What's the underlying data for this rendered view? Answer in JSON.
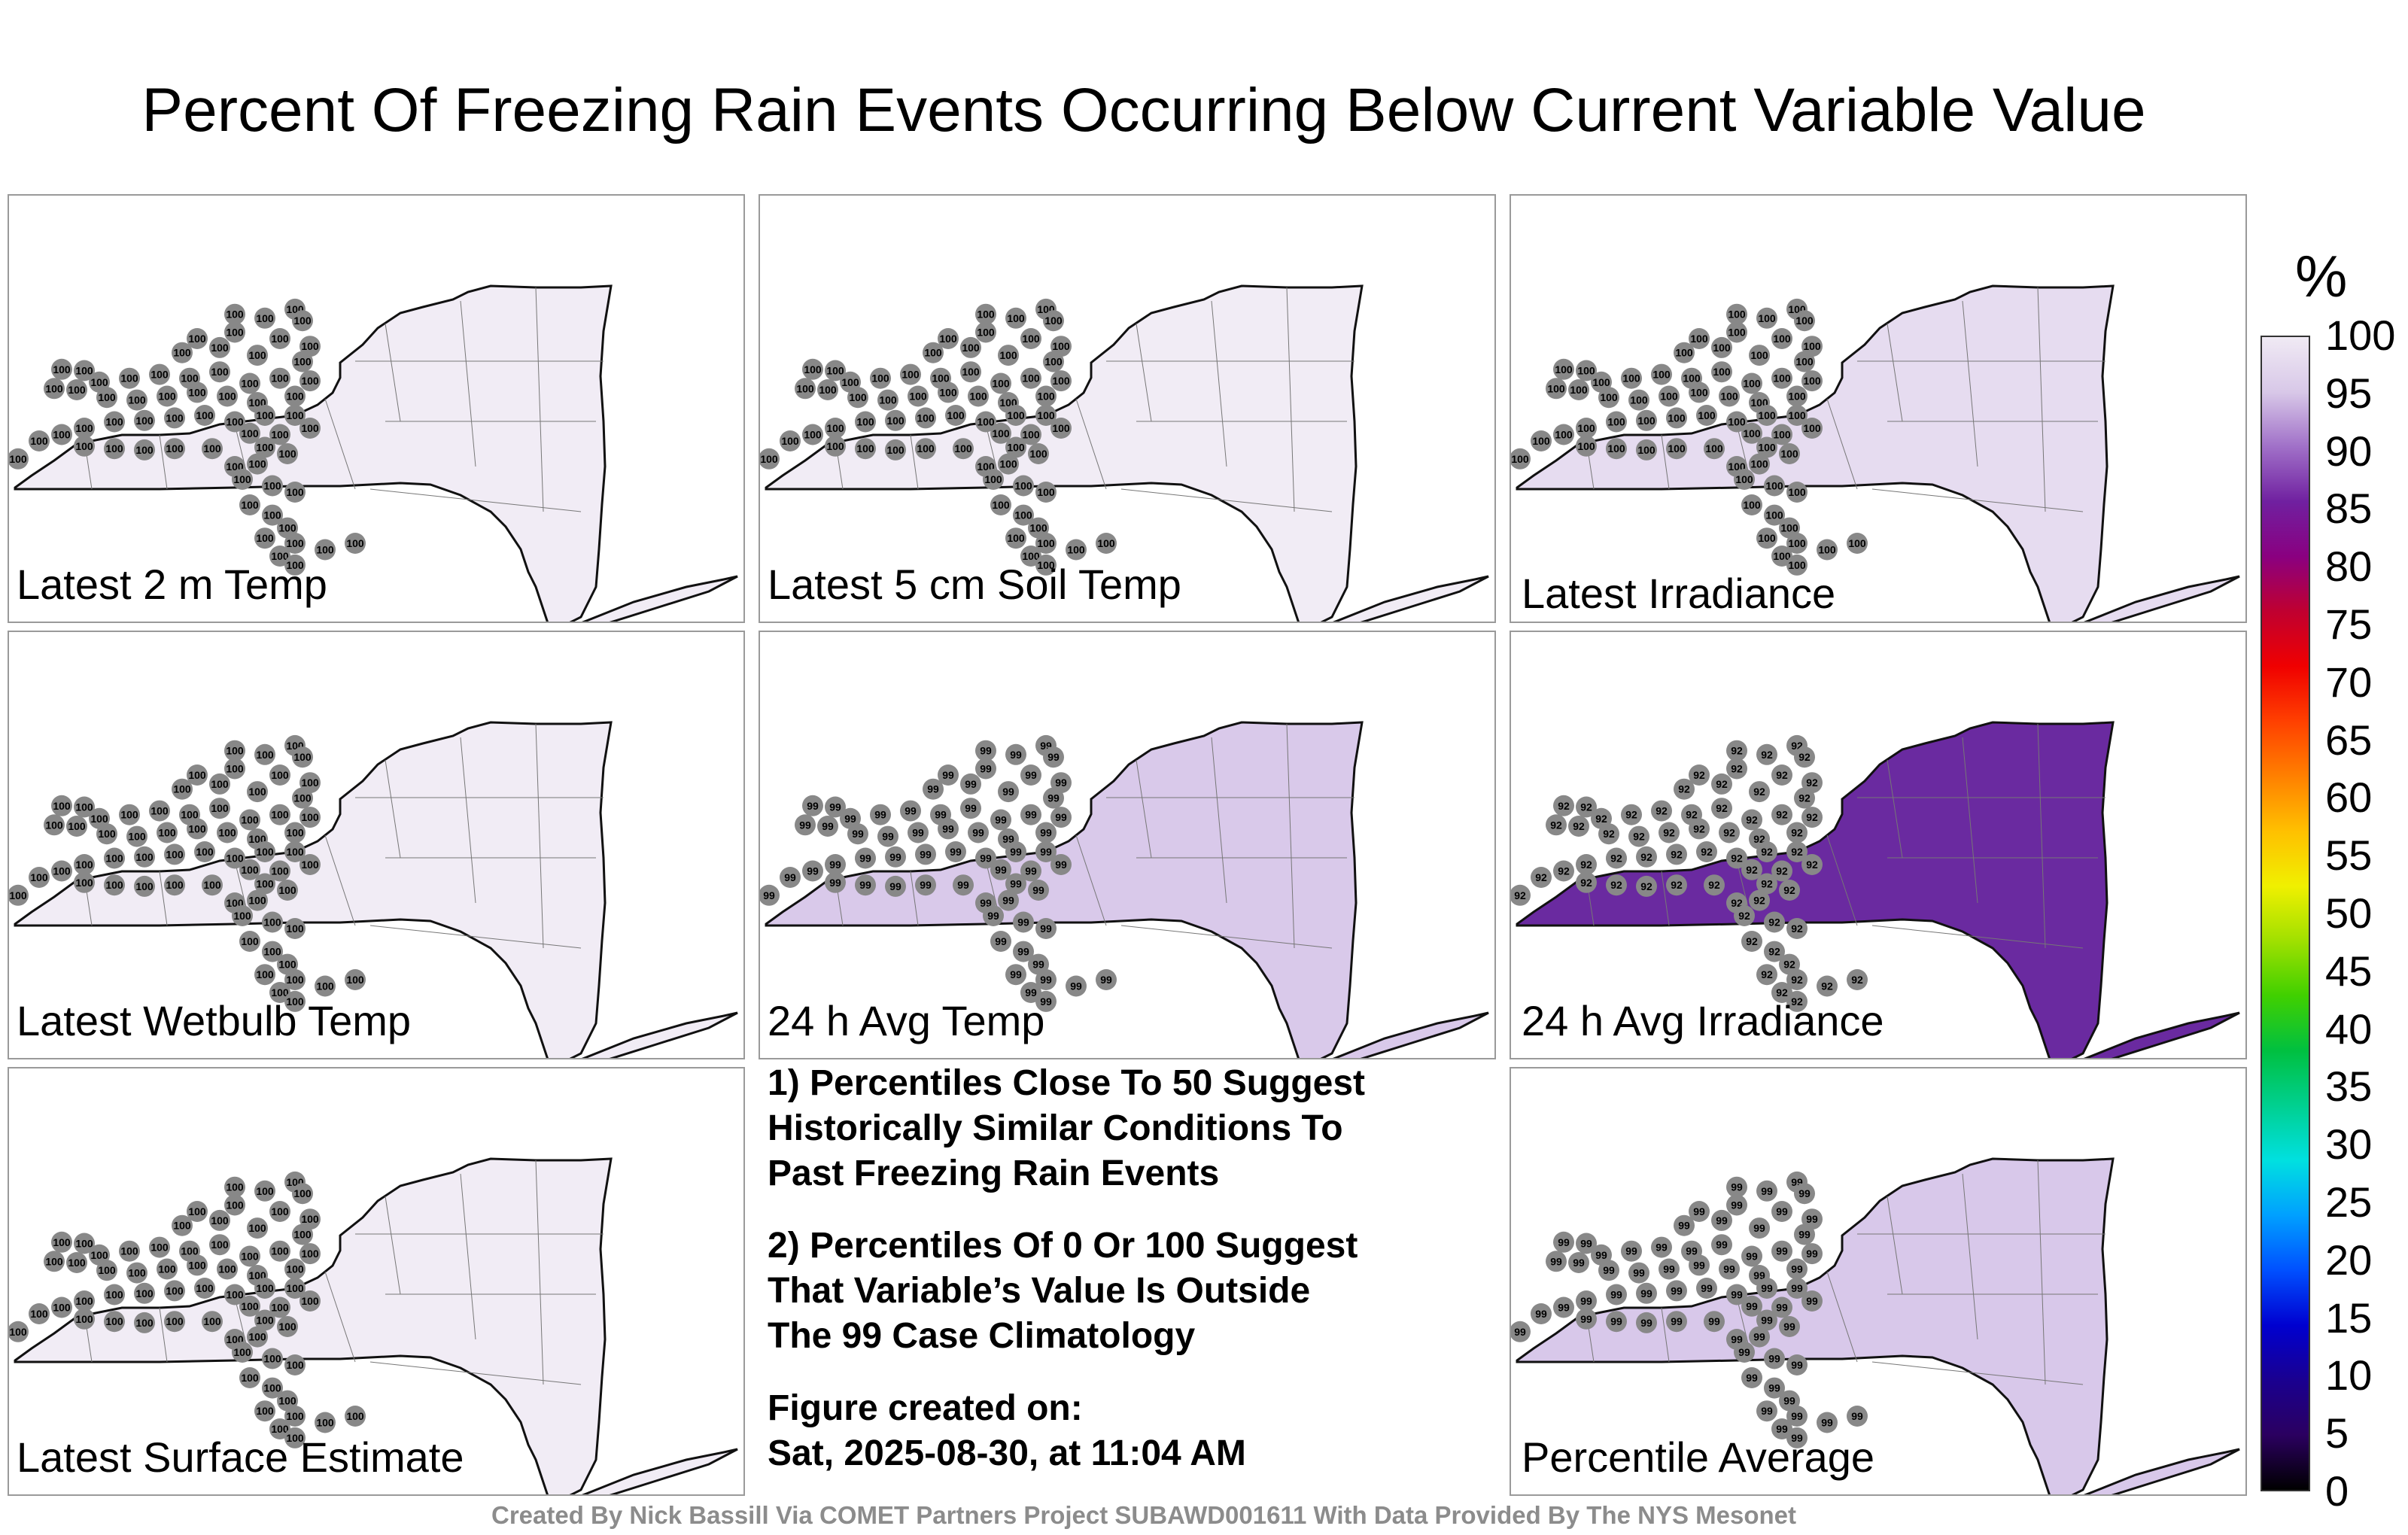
{
  "title": "Percent Of Freezing Rain Events Occurring Below Current Variable Value",
  "colorbar": {
    "unit": "%",
    "ticks": [
      "100",
      "95",
      "90",
      "85",
      "80",
      "75",
      "70",
      "65",
      "60",
      "55",
      "50",
      "45",
      "40",
      "35",
      "30",
      "25",
      "20",
      "15",
      "10",
      "5",
      "0"
    ],
    "colors": [
      "#000000",
      "#2b0060",
      "#1a0090",
      "#0000d0",
      "#0050ff",
      "#00a0ff",
      "#00e0e0",
      "#00d090",
      "#00c040",
      "#40d000",
      "#a0e000",
      "#f0f000",
      "#ffc000",
      "#ff8000",
      "#ff4000",
      "#f00000",
      "#c00030",
      "#8a0080",
      "#7020a0",
      "#a070c8",
      "#d8c8e8",
      "#f0eaf4"
    ]
  },
  "panels": [
    {
      "label": "Latest 2 m Temp",
      "fill": "#f1ecf5",
      "value": "100"
    },
    {
      "label": "Latest 5 cm Soil Temp",
      "fill": "#f1ecf5",
      "value": "100"
    },
    {
      "label": "Latest Irradiance",
      "fill": "#e6dcf0",
      "value": "100"
    },
    {
      "label": "Latest Wetbulb Temp",
      "fill": "#f1ecf5",
      "value": "100"
    },
    {
      "label": "24 h Avg Temp",
      "fill": "#d9c9ea",
      "value": "99"
    },
    {
      "label": "24 h Avg Irradiance",
      "fill": "#6a2aa0",
      "value": "92"
    },
    {
      "label": "Latest Surface Estimate",
      "fill": "#f1ecf5",
      "value": "100"
    },
    {
      "label": "Percentile Average",
      "fill": "#d8c8ea",
      "value": "99"
    }
  ],
  "notes": [
    "1) Percentiles Close To 50 Suggest\nHistorically Similar Conditions To\nPast Freezing Rain Events",
    "2) Percentiles Of 0 Or 100 Suggest\nThat Variable’s Value Is Outside\nThe 99 Case Climatology",
    "Figure created on:\nSat, 2025-08-30, at 11:04 AM"
  ],
  "credit": "Created By Nick Bassill Via COMET Partners Project SUBAWD001611 With Data Provided By The NYS Mesonet"
}
